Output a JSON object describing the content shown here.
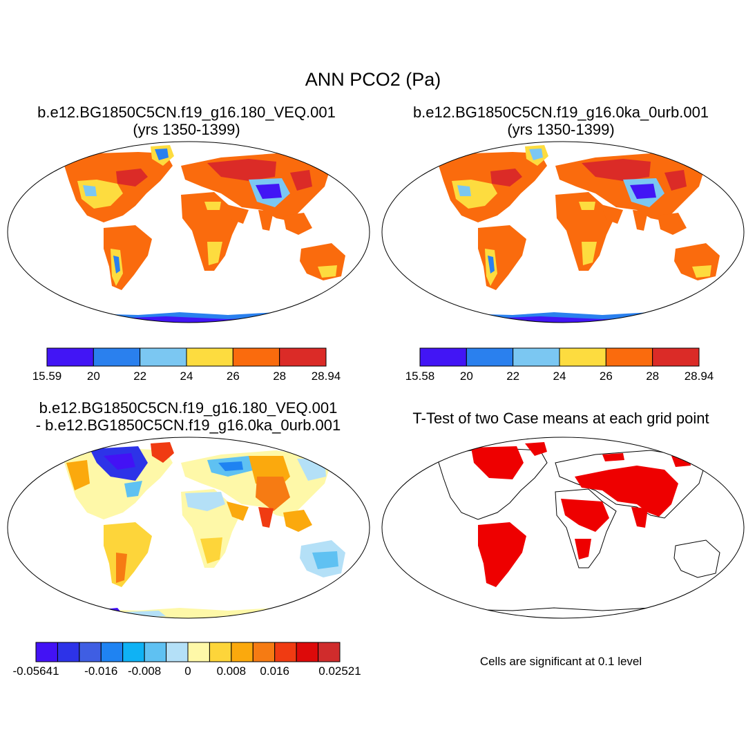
{
  "main_title": "ANN PCO2 (Pa)",
  "panels": [
    {
      "title_line1": "b.e12.BG1850C5CN.f19_g16.180_VEQ.001",
      "title_line2": "(yrs 1350-1399)",
      "colorbar": {
        "colors": [
          "#4215f5",
          "#2a80ee",
          "#7bc7f2",
          "#fddc3f",
          "#fa6b0d",
          "#db2b27"
        ],
        "labels": [
          "15.59",
          "20",
          "22",
          "24",
          "26",
          "28",
          "28.94"
        ]
      }
    },
    {
      "title_line1": "b.e12.BG1850C5CN.f19_g16.0ka_0urb.001",
      "title_line2": "(yrs 1350-1399)",
      "colorbar": {
        "colors": [
          "#4215f5",
          "#2a80ee",
          "#7bc7f2",
          "#fddc3f",
          "#fa6b0d",
          "#db2b27"
        ],
        "labels": [
          "15.58",
          "20",
          "22",
          "24",
          "26",
          "28",
          "28.94"
        ]
      }
    },
    {
      "title_line1": "b.e12.BG1850C5CN.f19_g16.180_VEQ.001",
      "title_line2": "- b.e12.BG1850C5CN.f19_g16.0ka_0urb.001",
      "colorbar": {
        "colors": [
          "#4312f5",
          "#2d33e8",
          "#3f5ee3",
          "#1f83f2",
          "#0fb2f5",
          "#5fc1f2",
          "#b4e0f7",
          "#fef8a8",
          "#fdd53a",
          "#fba90d",
          "#f67b13",
          "#f03b12",
          "#dd0a0a",
          "#d02c2c"
        ],
        "labels": [
          "-0.05641",
          "-0.016",
          "-0.008",
          "0",
          "0.008",
          "0.016",
          "0.02521"
        ]
      }
    },
    {
      "title_line1": "T-Test of two Case means at each grid point",
      "note": "Cells are significant at 0.1 level"
    }
  ]
}
